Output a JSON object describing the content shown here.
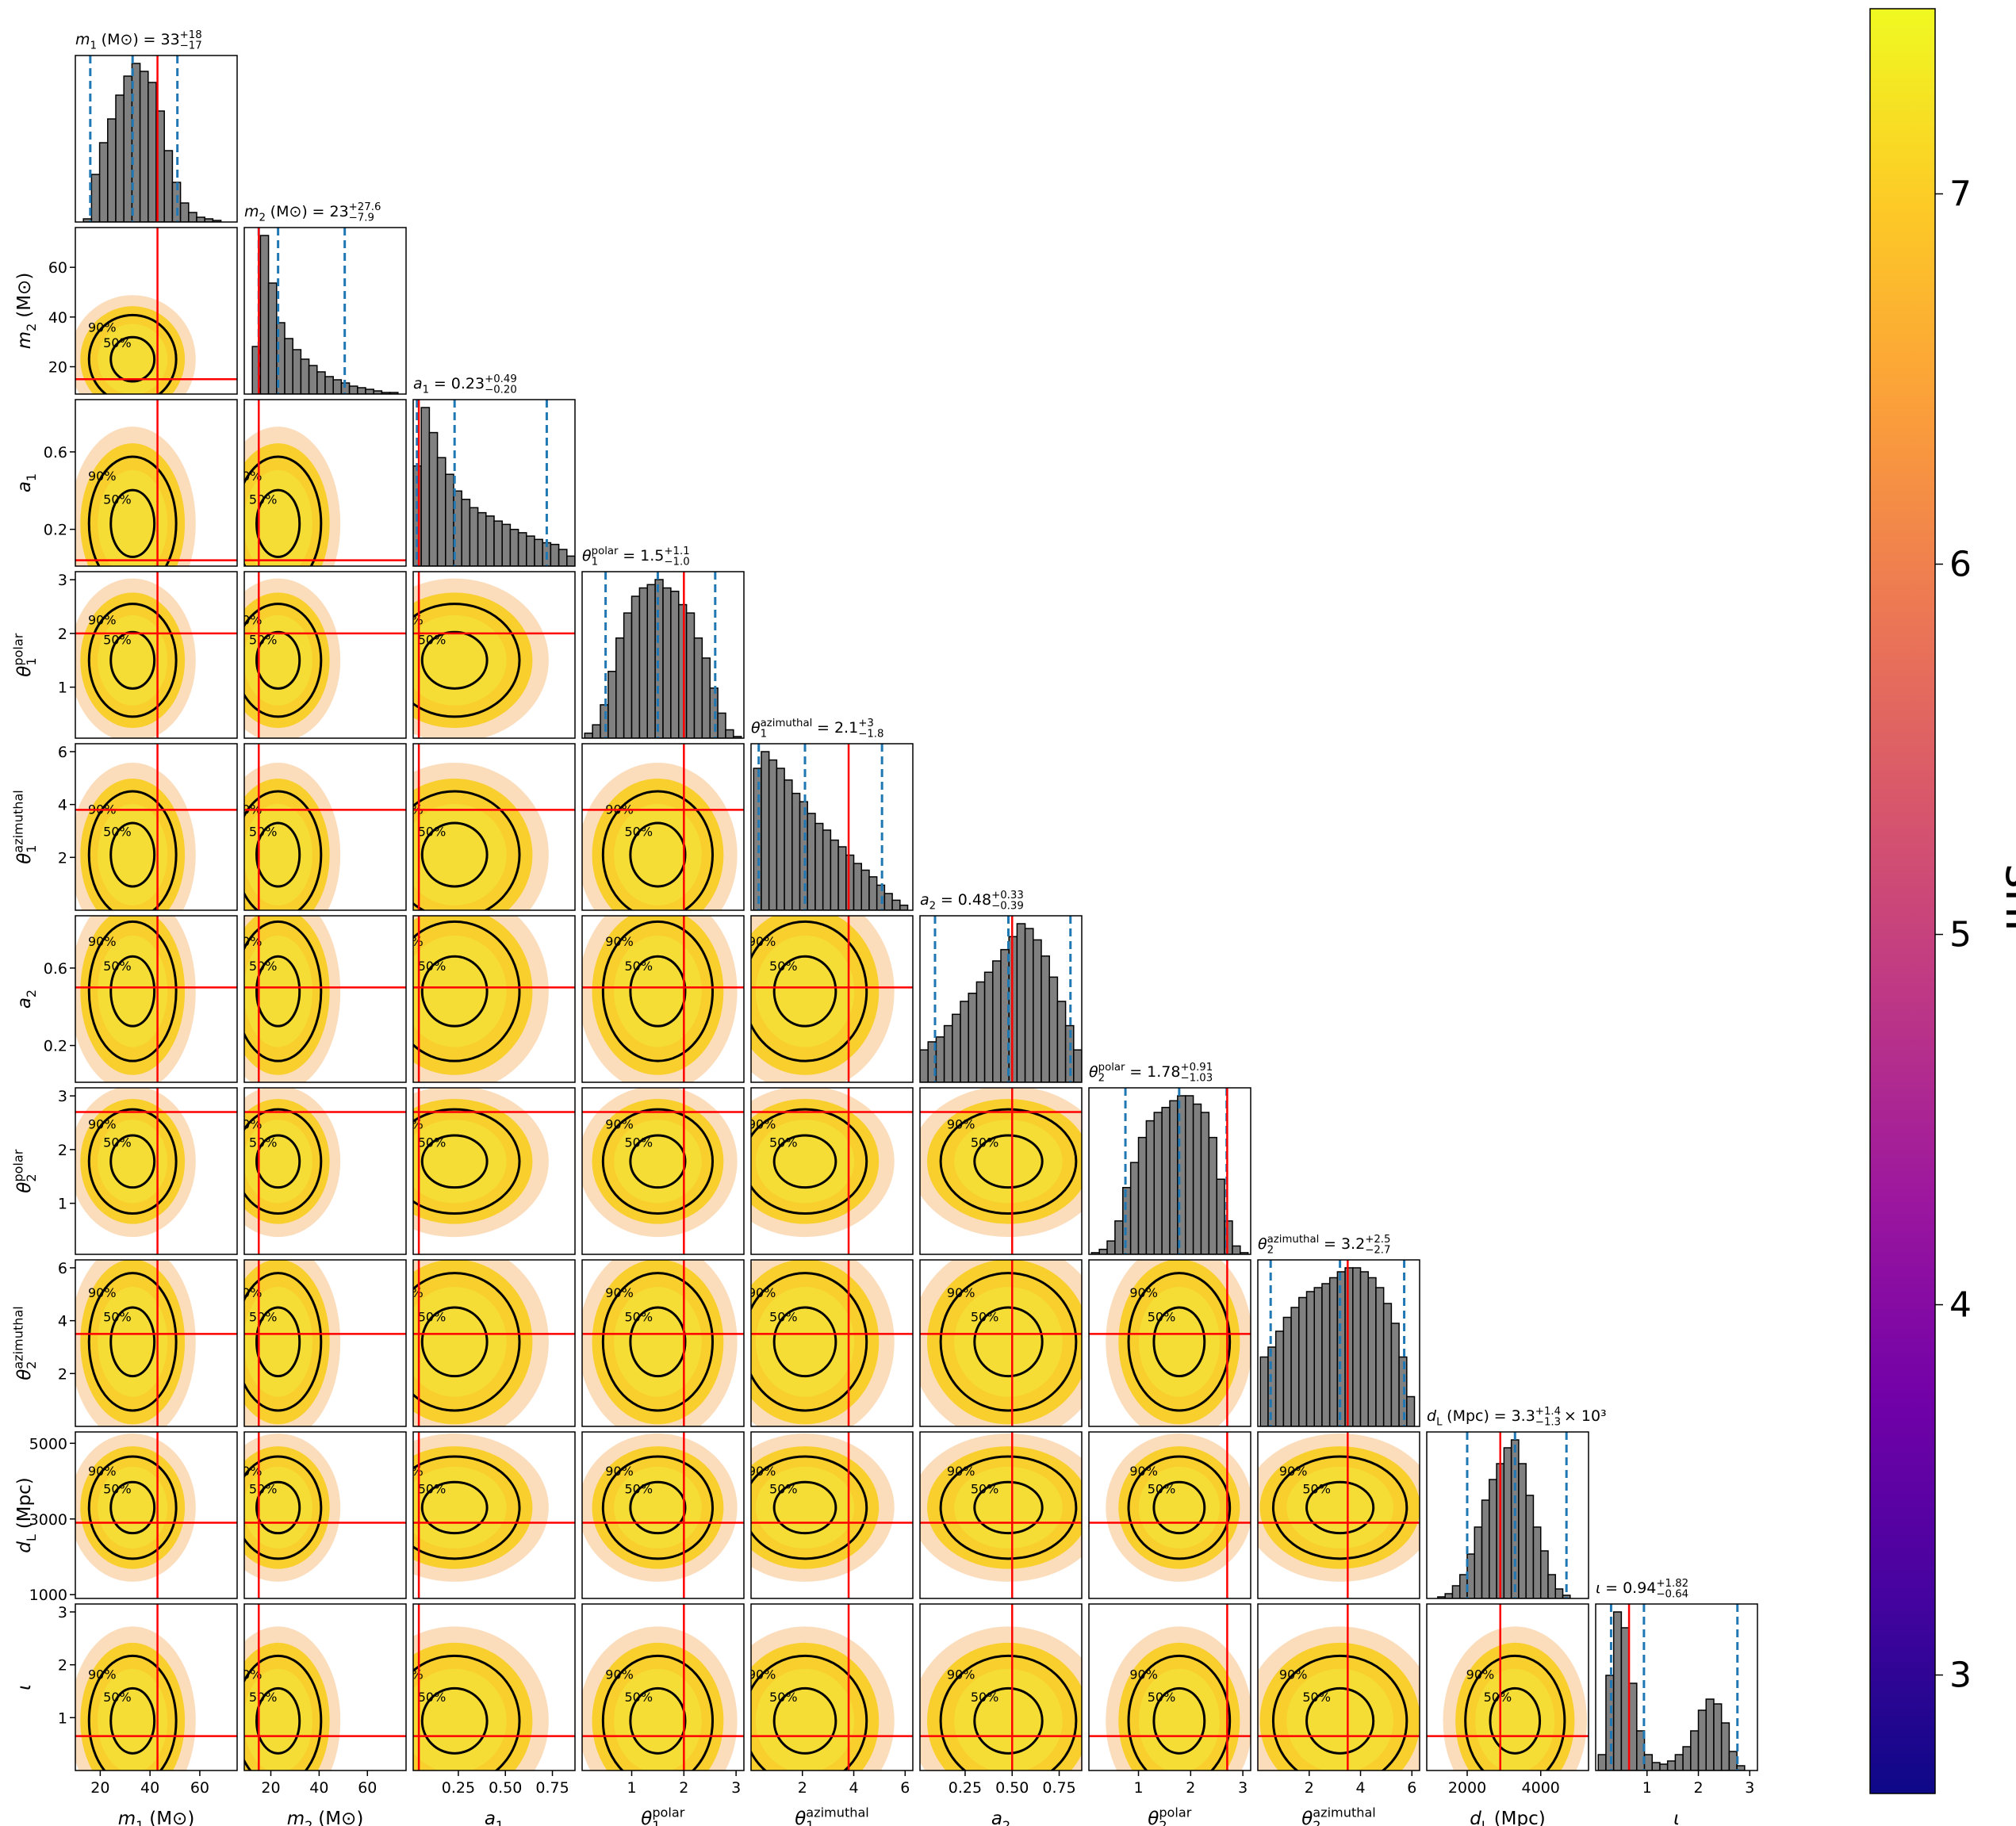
{
  "chart_data": {
    "type": "corner",
    "truth_color": "#ff0000",
    "quantile_color": "#1f77b4",
    "hist_color": "#808080",
    "contour_labels": [
      "50%",
      "90%"
    ],
    "colorbar": {
      "label": "snr",
      "colormap": "plasma",
      "lim": [
        2.68,
        7.5
      ],
      "ticks": [
        3,
        4,
        5,
        6,
        7
      ]
    },
    "params": [
      {
        "label": {
          "symbol": "m",
          "sub": "1",
          "unit": "(M⊙)"
        },
        "title": {
          "text": "= 33",
          "plus": "+18",
          "minus": "−17"
        },
        "lim": [
          10,
          75
        ],
        "ticks": [
          20,
          40,
          60
        ],
        "truth": 43,
        "quantiles": [
          16,
          33,
          51
        ],
        "hist": {
          "bins": [
            10,
            13.25,
            16.5,
            19.75,
            23,
            26.25,
            29.5,
            32.75,
            36,
            39.25,
            42.5,
            45.75,
            49,
            52.25,
            55.5,
            58.75,
            62,
            65.25,
            68.5,
            71.75,
            75
          ],
          "counts": [
            0,
            2,
            30,
            50,
            65,
            80,
            92,
            100,
            95,
            88,
            70,
            45,
            25,
            12,
            6,
            3,
            2,
            1,
            0,
            0
          ]
        }
      },
      {
        "label": {
          "symbol": "m",
          "sub": "2",
          "unit": "(M⊙)"
        },
        "title": {
          "text": "= 23",
          "plus": "+27.6",
          "minus": "−7.9"
        },
        "lim": [
          9,
          76
        ],
        "ticks": [
          20,
          40,
          60
        ],
        "truth": 15,
        "quantiles": [
          15,
          23,
          50.6
        ],
        "hist": {
          "bins": [
            9,
            12.35,
            15.7,
            19.05,
            22.4,
            25.75,
            29.1,
            32.45,
            35.8,
            39.15,
            42.5,
            45.85,
            49.2,
            52.55,
            55.9,
            59.25,
            62.6,
            65.95,
            69.3,
            72.65,
            76
          ],
          "counts": [
            0,
            30,
            100,
            70,
            45,
            35,
            28,
            22,
            18,
            14,
            11,
            9,
            7,
            5,
            4,
            3,
            2,
            1,
            1,
            0
          ]
        }
      },
      {
        "label": {
          "symbol": "a",
          "sub": "1"
        },
        "title": {
          "text": "= 0.23",
          "plus": "+0.49",
          "minus": "−0.20"
        },
        "lim": [
          0.01,
          0.87
        ],
        "ticks": [
          0.25,
          {
            "value": 0.5,
            "label": "0.50"
          },
          0.75
        ],
        "yticks": [
          0.2,
          0.6
        ],
        "truth": 0.04,
        "quantiles": [
          0.03,
          0.23,
          0.72
        ],
        "hist": {
          "bins": [
            0.01,
            0.053,
            0.096,
            0.139,
            0.182,
            0.225,
            0.268,
            0.311,
            0.354,
            0.397,
            0.44,
            0.483,
            0.526,
            0.569,
            0.612,
            0.655,
            0.698,
            0.741,
            0.784,
            0.827,
            0.87
          ],
          "counts": [
            60,
            95,
            80,
            65,
            55,
            45,
            40,
            35,
            32,
            30,
            27,
            25,
            22,
            20,
            18,
            16,
            14,
            13,
            10,
            6
          ]
        }
      },
      {
        "label": {
          "symbol": "θ",
          "sup": "polar",
          "sub": "1"
        },
        "title": {
          "text": "= 1.5",
          "plus": "+1.1",
          "minus": "−1.0"
        },
        "lim": [
          0.05,
          3.15
        ],
        "ticks": [
          1,
          2,
          3
        ],
        "truth": 2.0,
        "quantiles": [
          0.5,
          1.5,
          2.6
        ],
        "hist": {
          "bins": [
            0.1,
            0.25,
            0.4,
            0.55,
            0.7,
            0.85,
            1,
            1.15,
            1.3,
            1.45,
            1.6,
            1.75,
            1.9,
            2.05,
            2.2,
            2.35,
            2.5,
            2.65,
            2.8,
            2.95,
            3.1
          ],
          "counts": [
            3,
            8,
            20,
            40,
            60,
            75,
            85,
            90,
            92,
            95,
            90,
            88,
            80,
            75,
            60,
            48,
            30,
            15,
            5,
            1
          ]
        }
      },
      {
        "label": {
          "symbol": "θ",
          "sup": "azimuthal",
          "sub": "1"
        },
        "title": {
          "text": "= 2.1",
          "plus": "+3",
          "minus": "−1.8"
        },
        "lim": [
          0,
          6.3
        ],
        "ticks": [
          2,
          4,
          6
        ],
        "truth": 3.8,
        "quantiles": [
          0.3,
          2.1,
          5.1
        ],
        "hist": {
          "bins": [
            0.1,
            0.4,
            0.7,
            1,
            1.3,
            1.6,
            1.9,
            2.2,
            2.5,
            2.8,
            3.1,
            3.4,
            3.7,
            4,
            4.3,
            4.6,
            4.9,
            5.2,
            5.5,
            5.8,
            6.1
          ],
          "counts": [
            85,
            95,
            90,
            85,
            78,
            70,
            65,
            58,
            52,
            48,
            42,
            38,
            33,
            28,
            24,
            20,
            15,
            10,
            6,
            3
          ]
        }
      },
      {
        "label": {
          "symbol": "a",
          "sub": "2"
        },
        "title": {
          "text": "= 0.48",
          "plus": "+0.33",
          "minus": "−0.39"
        },
        "lim": [
          0.01,
          0.87
        ],
        "ticks": [
          0.25,
          {
            "value": 0.5,
            "label": "0.50"
          },
          0.75
        ],
        "yticks": [
          0.2,
          0.6
        ],
        "truth": 0.5,
        "quantiles": [
          0.09,
          0.48,
          0.81
        ],
        "hist": {
          "bins": [
            0.01,
            0.053,
            0.096,
            0.139,
            0.182,
            0.225,
            0.268,
            0.311,
            0.354,
            0.397,
            0.44,
            0.483,
            0.526,
            0.569,
            0.612,
            0.655,
            0.698,
            0.741,
            0.784,
            0.827,
            0.87
          ],
          "counts": [
            20,
            25,
            28,
            35,
            42,
            50,
            55,
            62,
            68,
            75,
            82,
            90,
            98,
            95,
            88,
            78,
            65,
            50,
            35,
            20
          ]
        }
      },
      {
        "label": {
          "symbol": "θ",
          "sup": "polar",
          "sub": "2"
        },
        "title": {
          "text": "= 1.78",
          "plus": "+0.91",
          "minus": "−1.03"
        },
        "lim": [
          0.05,
          3.15
        ],
        "ticks": [
          1,
          2,
          3
        ],
        "truth": 2.7,
        "quantiles": [
          0.75,
          1.78,
          2.69
        ],
        "hist": {
          "bins": [
            0.1,
            0.25,
            0.4,
            0.55,
            0.7,
            0.85,
            1,
            1.15,
            1.3,
            1.45,
            1.6,
            1.75,
            1.9,
            2.05,
            2.2,
            2.35,
            2.5,
            2.65,
            2.8,
            2.95,
            3.1
          ],
          "counts": [
            1,
            3,
            8,
            20,
            40,
            55,
            70,
            80,
            85,
            88,
            92,
            95,
            95,
            90,
            85,
            70,
            45,
            20,
            5,
            1
          ]
        }
      },
      {
        "label": {
          "symbol": "θ",
          "sup": "azimuthal",
          "sub": "2"
        },
        "title": {
          "text": "= 3.2",
          "plus": "+2.5",
          "minus": "−2.7"
        },
        "lim": [
          0,
          6.3
        ],
        "ticks": [
          2,
          4,
          6
        ],
        "truth": 3.5,
        "quantiles": [
          0.5,
          3.2,
          5.7
        ],
        "hist": {
          "bins": [
            0.1,
            0.4,
            0.7,
            1,
            1.3,
            1.6,
            1.9,
            2.2,
            2.5,
            2.8,
            3.1,
            3.4,
            3.7,
            4,
            4.3,
            4.6,
            4.9,
            5.2,
            5.5,
            5.8,
            6.1
          ],
          "counts": [
            35,
            40,
            48,
            55,
            60,
            65,
            68,
            70,
            72,
            75,
            78,
            80,
            80,
            78,
            75,
            70,
            62,
            52,
            35,
            15
          ]
        }
      },
      {
        "label": {
          "symbol": "d",
          "sub": "L",
          "unit": "(Mpc)"
        },
        "title": {
          "text": "= 3.3",
          "plus": "+1.4",
          "minus": "−1.3",
          "suffix": "× 10³"
        },
        "lim": [
          900,
          5300
        ],
        "ticks": [
          2000,
          4000
        ],
        "yticks": [
          1000,
          3000,
          5000
        ],
        "truth": 2900,
        "quantiles": [
          2000,
          3300,
          4700
        ],
        "hist": {
          "bins": [
            1000,
            1200,
            1400,
            1600,
            1800,
            2000,
            2200,
            2400,
            2600,
            2800,
            3000,
            3200,
            3400,
            3600,
            3800,
            4000,
            4200,
            4400,
            4600,
            4800,
            5000
          ],
          "counts": [
            0,
            1,
            3,
            8,
            15,
            28,
            45,
            62,
            75,
            85,
            95,
            100,
            85,
            65,
            45,
            30,
            15,
            6,
            2,
            0
          ]
        }
      },
      {
        "label": {
          "symbol": "ι"
        },
        "title": {
          "text": "= 0.94",
          "plus": "+1.82",
          "minus": "−0.64"
        },
        "lim": [
          0,
          3.15
        ],
        "ticks": [
          1,
          2,
          3
        ],
        "truth": 0.65,
        "quantiles": [
          0.3,
          0.94,
          2.76
        ],
        "hist": {
          "bins": [
            0.05,
            0.2,
            0.35,
            0.5,
            0.65,
            0.8,
            0.95,
            1.1,
            1.25,
            1.4,
            1.55,
            1.7,
            1.85,
            2,
            2.15,
            2.3,
            2.45,
            2.6,
            2.75,
            2.9,
            3.05
          ],
          "counts": [
            10,
            60,
            100,
            90,
            55,
            25,
            10,
            5,
            4,
            6,
            10,
            15,
            25,
            38,
            45,
            42,
            30,
            12,
            3,
            0
          ]
        }
      }
    ]
  }
}
